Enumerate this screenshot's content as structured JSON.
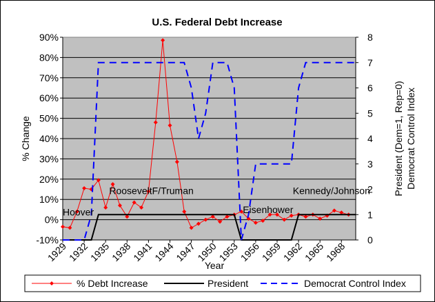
{
  "chart_data": {
    "type": "line",
    "title": "U.S. Federal Debt Increase",
    "xlabel": "Year",
    "ylabel_left": "% Change",
    "ylabel_right_line1": "President (Dem=1, Rep=0)",
    "ylabel_right_line2": "Democrat Control Index",
    "x_start": 1929,
    "x_end": 1970,
    "x_ticks": [
      1929,
      1932,
      1935,
      1938,
      1941,
      1944,
      1947,
      1950,
      1953,
      1956,
      1959,
      1962,
      1965,
      1968
    ],
    "ylim_left": [
      -10,
      90
    ],
    "y_ticks_left": [
      "-10%",
      "0%",
      "10%",
      "20%",
      "30%",
      "40%",
      "50%",
      "60%",
      "70%",
      "80%",
      "90%"
    ],
    "ylim_right": [
      0,
      8
    ],
    "y_ticks_right": [
      "0",
      "1",
      "2",
      "3",
      "4",
      "5",
      "6",
      "7",
      "8"
    ],
    "grid": true,
    "legend_position": "bottom",
    "colors": {
      "debt": "#ff0000",
      "president": "#000000",
      "democrat_index": "#0000ff",
      "plot_bg": "#c0c0c0"
    },
    "annotations": [
      {
        "text": "Hoover",
        "year": 1929,
        "value": 1.1
      },
      {
        "text": "RooseveltF/Truman",
        "year": 1935.5,
        "value": 1.95
      },
      {
        "text": "Eisenhower",
        "year": 1954.2,
        "value": 1.2
      },
      {
        "text": "Kennedy/Johnson",
        "year": 1961.2,
        "value": 1.95
      }
    ],
    "series": [
      {
        "name": "% Debt Increase",
        "axis": "left",
        "style": "line-diamond",
        "x": [
          1929,
          1930,
          1931,
          1932,
          1933,
          1934,
          1935,
          1936,
          1937,
          1938,
          1939,
          1940,
          1941,
          1942,
          1943,
          1944,
          1945,
          1946,
          1947,
          1948,
          1949,
          1950,
          1951,
          1952,
          1953,
          1954,
          1955,
          1956,
          1957,
          1958,
          1959,
          1960,
          1961,
          1962,
          1963,
          1964,
          1965,
          1966,
          1967,
          1968,
          1969
        ],
        "y": [
          -3.5,
          -4,
          4,
          15.5,
          15,
          19.5,
          6,
          17.5,
          7,
          1.5,
          8.5,
          6,
          14,
          48,
          88.5,
          46.5,
          28.5,
          4,
          -4,
          -2,
          0,
          1.5,
          -1,
          1.5,
          2.5,
          4,
          0.5,
          -1.5,
          -0.5,
          2.5,
          2.5,
          0,
          2,
          2.5,
          1.5,
          2.5,
          0.5,
          2,
          4.5,
          3.5,
          2.5
        ]
      },
      {
        "name": "President",
        "axis": "right",
        "style": "solid",
        "x": [
          1929,
          1933,
          1934,
          1953,
          1954,
          1961,
          1962,
          1970
        ],
        "y": [
          0,
          0,
          1,
          1,
          0,
          0,
          1,
          1
        ]
      },
      {
        "name": "Democrat Control Index",
        "axis": "right",
        "style": "dashed",
        "x": [
          1929,
          1931,
          1932,
          1933,
          1934,
          1935,
          1946,
          1947,
          1948,
          1949,
          1950,
          1951,
          1952,
          1953,
          1954,
          1955,
          1956,
          1957,
          1960,
          1961,
          1962,
          1963,
          1970
        ],
        "y": [
          0,
          0,
          0,
          1,
          7,
          7,
          7,
          6,
          4,
          5,
          7,
          7,
          7,
          6,
          0,
          1,
          3,
          3,
          3,
          3,
          6,
          7,
          7
        ]
      }
    ]
  }
}
